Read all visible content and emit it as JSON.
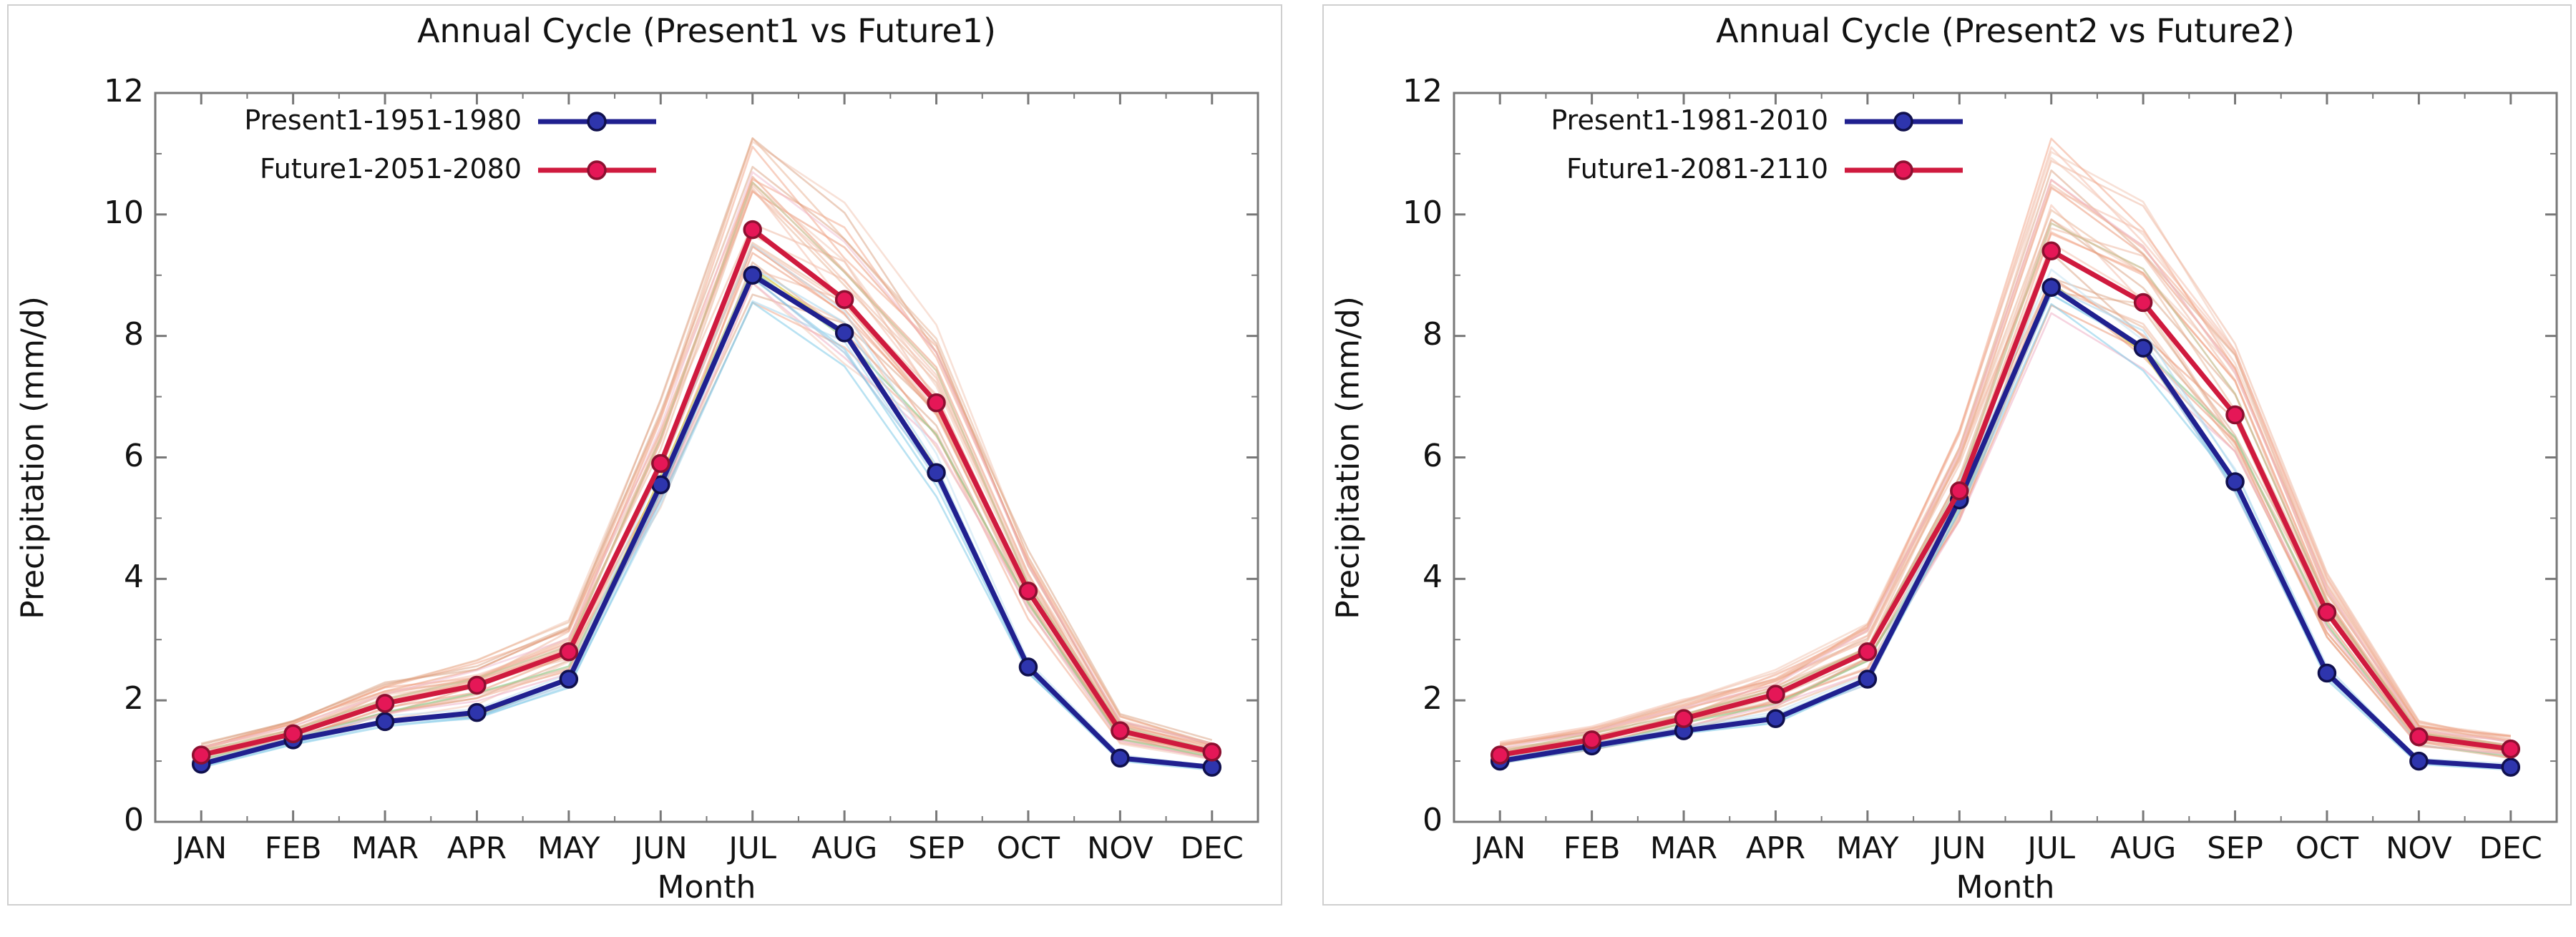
{
  "page": {
    "background": "#ffffff"
  },
  "chart_data": [
    {
      "type": "line",
      "title": "Annual Cycle (Present1 vs Future1)",
      "xlabel": "Month",
      "ylabel": "Precipitation (mm/d)",
      "categories": [
        "JAN",
        "FEB",
        "MAR",
        "APR",
        "MAY",
        "JUN",
        "JUL",
        "AUG",
        "SEP",
        "OCT",
        "NOV",
        "DEC"
      ],
      "yticks": [
        0,
        2,
        4,
        6,
        8,
        10,
        12
      ],
      "ylim": [
        0,
        12
      ],
      "grid": false,
      "legend_position": "top-left-inside",
      "series": [
        {
          "name": "Present1-1951-1980",
          "key": "present",
          "color": "#20208f",
          "marker_fill": "#2e35ad",
          "marker_edge": "#10104d",
          "values": [
            0.95,
            1.35,
            1.65,
            1.8,
            2.35,
            5.55,
            9.0,
            8.05,
            5.75,
            2.55,
            1.05,
            0.9
          ]
        },
        {
          "name": "Future1-2051-2080",
          "key": "future",
          "color": "#cf1a3e",
          "marker_fill": "#e51757",
          "marker_edge": "#8c1030",
          "values": [
            1.1,
            1.45,
            1.95,
            2.25,
            2.8,
            5.9,
            9.75,
            8.6,
            6.9,
            3.8,
            1.5,
            1.15
          ]
        }
      ],
      "ensemble": {
        "seed": 7,
        "salmon_count": 26,
        "salmon_colors": [
          "#f2a284",
          "#eeb39b",
          "#e99270",
          "#f4b9a5",
          "#d9a07f",
          "#f2c4b0",
          "#e8b090"
        ],
        "salmon_bias_min": -0.1,
        "salmon_bias_range": 0.26,
        "accent_lines": [
          {
            "base": "future",
            "factor": 0.93,
            "color": "#9ccf96",
            "opacity": 0.7
          },
          {
            "base": "present",
            "factor": 1.0,
            "color": "#ddcd52",
            "opacity": 0.75
          },
          {
            "base": "future",
            "factor": 1.05,
            "color": "#c9bd92",
            "opacity": 0.7
          },
          {
            "base": "future",
            "factor": 0.9,
            "color": "#f0b8cc",
            "opacity": 0.6
          },
          {
            "base": "future",
            "factor": 1.1,
            "color": "#f0b8cc",
            "opacity": 0.5
          }
        ],
        "present_count": 6,
        "present_colors": [
          "#a5d5ec",
          "#7fcbe8",
          "#8fb8d8",
          "#c2e2f2"
        ],
        "present_spread": 0.045
      }
    },
    {
      "type": "line",
      "title": "Annual Cycle (Present2 vs Future2)",
      "xlabel": "Month",
      "ylabel": "Precipitation (mm/d)",
      "categories": [
        "JAN",
        "FEB",
        "MAR",
        "APR",
        "MAY",
        "JUN",
        "JUL",
        "AUG",
        "SEP",
        "OCT",
        "NOV",
        "DEC"
      ],
      "yticks": [
        0,
        2,
        4,
        6,
        8,
        10,
        12
      ],
      "ylim": [
        0,
        12
      ],
      "grid": false,
      "legend_position": "top-left-inside",
      "series": [
        {
          "name": "Present1-1981-2010",
          "key": "present",
          "color": "#20208f",
          "marker_fill": "#2e35ad",
          "marker_edge": "#10104d",
          "values": [
            1.0,
            1.25,
            1.5,
            1.7,
            2.35,
            5.3,
            8.8,
            7.8,
            5.6,
            2.45,
            1.0,
            0.9
          ]
        },
        {
          "name": "Future1-2081-2110",
          "key": "future",
          "color": "#cf1a3e",
          "marker_fill": "#e51757",
          "marker_edge": "#8c1030",
          "values": [
            1.1,
            1.35,
            1.7,
            2.1,
            2.8,
            5.45,
            9.4,
            8.55,
            6.7,
            3.45,
            1.4,
            1.2
          ]
        }
      ],
      "ensemble": {
        "seed": 13,
        "salmon_count": 26,
        "salmon_colors": [
          "#f2a284",
          "#eeb39b",
          "#e99270",
          "#f4b9a5",
          "#d9a07f",
          "#f2c4b0",
          "#e8b090"
        ],
        "salmon_bias_min": -0.1,
        "salmon_bias_range": 0.26,
        "accent_lines": [
          {
            "base": "future",
            "factor": 0.93,
            "color": "#9ccf96",
            "opacity": 0.7
          },
          {
            "base": "present",
            "factor": 1.0,
            "color": "#ddcd52",
            "opacity": 0.75
          },
          {
            "base": "future",
            "factor": 1.05,
            "color": "#c9bd92",
            "opacity": 0.7
          },
          {
            "base": "future",
            "factor": 0.9,
            "color": "#f0b8cc",
            "opacity": 0.6
          },
          {
            "base": "future",
            "factor": 1.1,
            "color": "#f0b8cc",
            "opacity": 0.5
          }
        ],
        "present_count": 6,
        "present_colors": [
          "#a5d5ec",
          "#7fcbe8",
          "#8fb8d8",
          "#c2e2f2"
        ],
        "present_spread": 0.045
      }
    }
  ],
  "style_colors": {
    "spine": "#787878",
    "tick": "#787878",
    "text": "#121212",
    "panel_border": "#cfcfcf"
  }
}
